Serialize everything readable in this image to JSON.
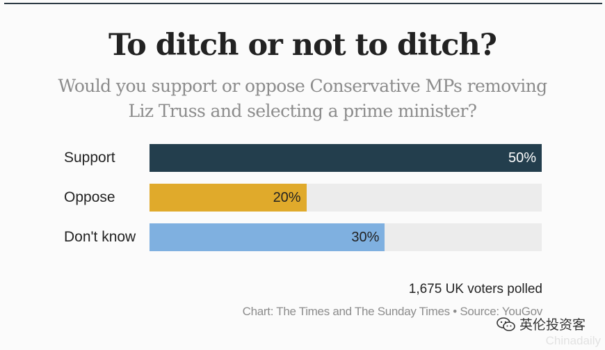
{
  "chart_data": {
    "type": "bar",
    "orientation": "horizontal",
    "title": "To ditch or not to ditch?",
    "subtitle": "Would you support or oppose Conservative MPs removing Liz Truss and selecting a prime minister?",
    "categories": [
      "Support",
      "Oppose",
      "Don't know"
    ],
    "values": [
      50,
      20,
      30
    ],
    "value_labels": [
      "50%",
      "20%",
      "30%"
    ],
    "colors": [
      "#233e4d",
      "#e0aa2b",
      "#7fb0e0"
    ],
    "label_colors": [
      "#ffffff",
      "#222222",
      "#222222"
    ],
    "track_color": "#ececec",
    "xlim": [
      0,
      50
    ],
    "grid": false,
    "legend": "none"
  },
  "footer": {
    "sample": "1,675 UK voters polled",
    "credit": "Chart: The Times and The Sunday Times • Source: YouGov"
  },
  "watermark": {
    "text": "英伦投资客",
    "subtext": "Chinadaily",
    "icon": "wechat-icon"
  }
}
